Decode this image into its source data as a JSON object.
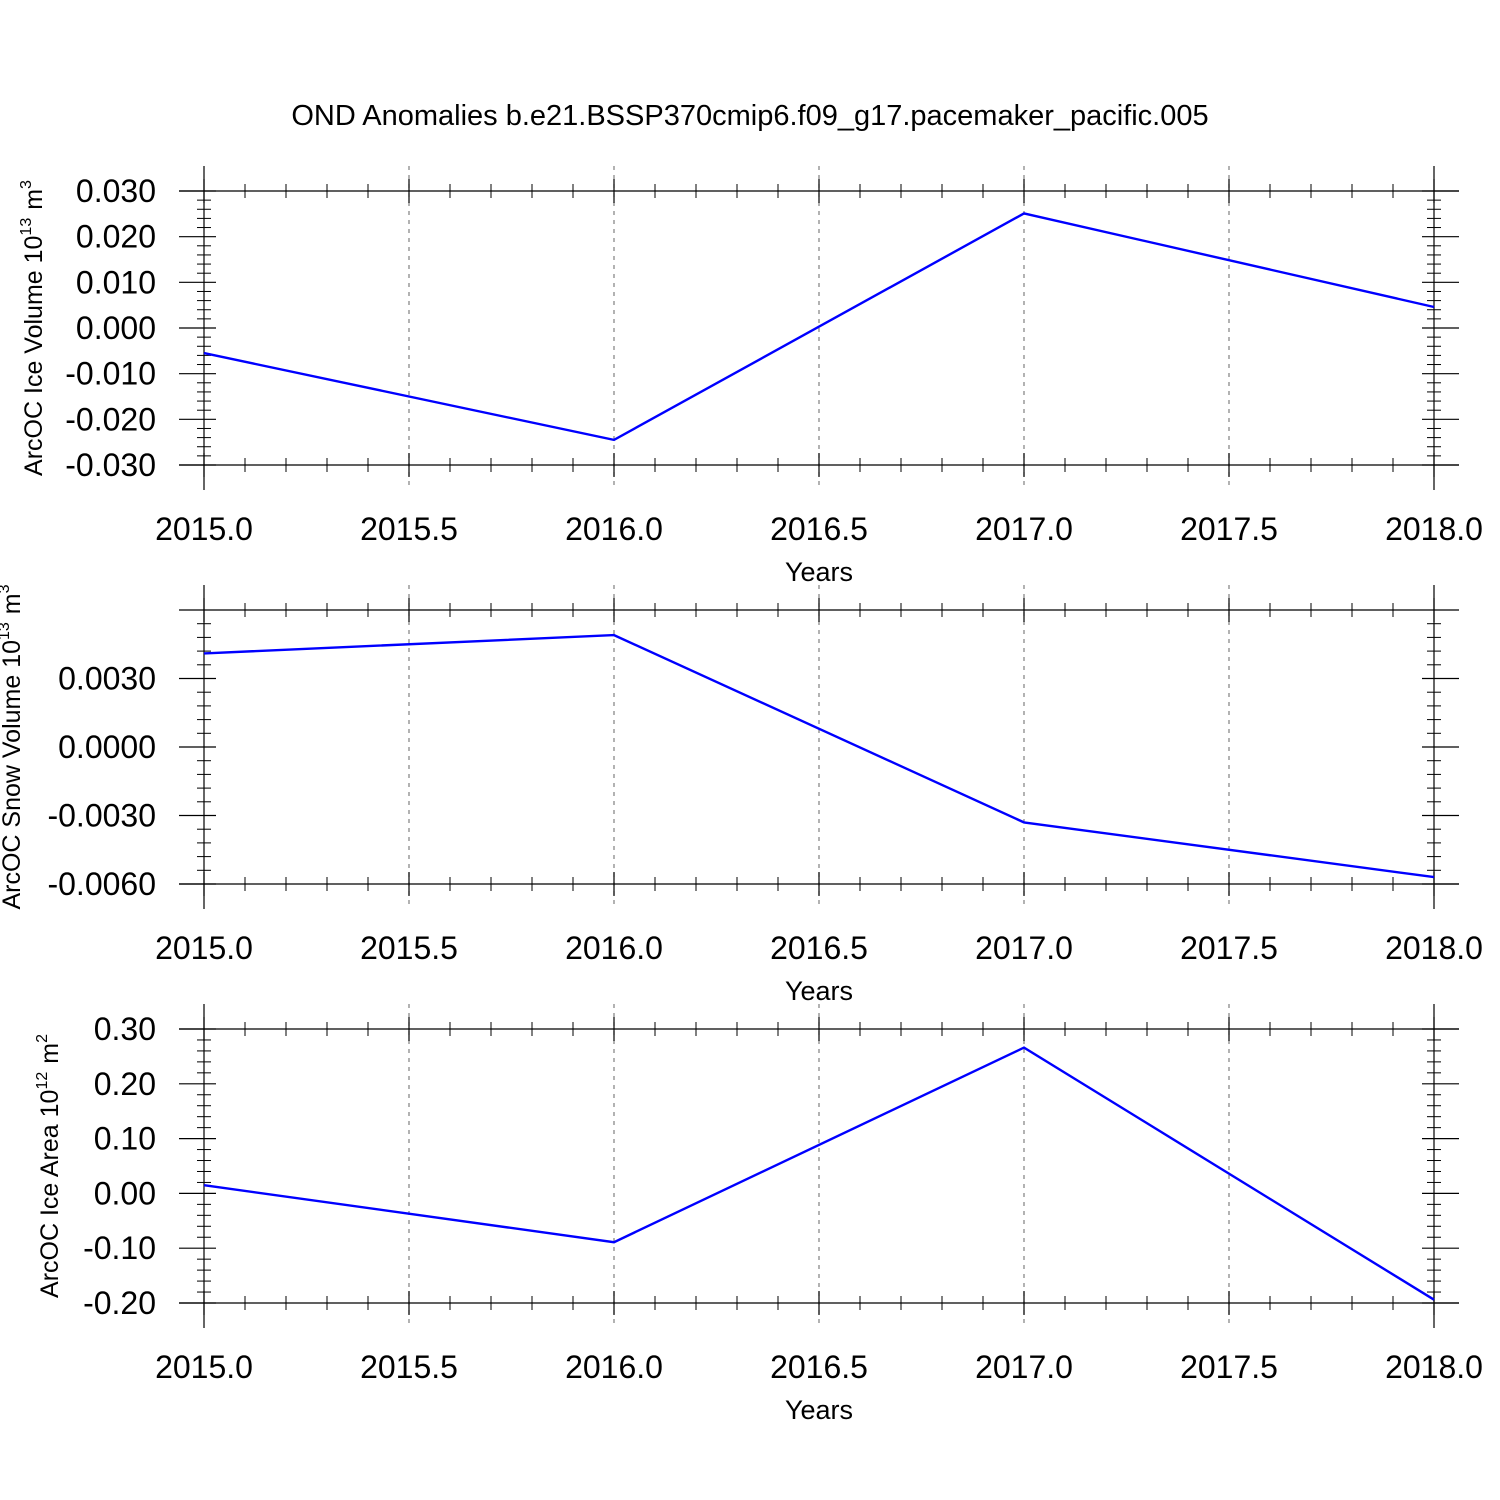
{
  "figure": {
    "title": "OND Anomalies b.e21.BSSP370cmip6.f09_g17.pacemaker_pacific.005"
  },
  "chart_data": [
    {
      "type": "line",
      "title": "",
      "xlabel": "Years",
      "ylabel": "ArcOC Ice Volume 10",
      "ylabel_exponent": "13",
      "ylabel_unit": "m",
      "ylabel_unit_exponent": "3",
      "x": [
        2015.0,
        2016.0,
        2017.0,
        2018.0
      ],
      "series": [
        {
          "values": [
            -0.0055,
            -0.0245,
            0.0251,
            0.0046
          ],
          "color": "#0000ff"
        }
      ],
      "xlim": [
        2015.0,
        2018.0
      ],
      "ylim": [
        -0.03,
        0.03
      ],
      "xticks": [
        2015.0,
        2015.5,
        2016.0,
        2016.5,
        2017.0,
        2017.5,
        2018.0
      ],
      "xtick_labels": [
        "2015.0",
        "2015.5",
        "2016.0",
        "2016.5",
        "2017.0",
        "2017.5",
        "2018.0"
      ],
      "yticks": [
        -0.03,
        -0.02,
        -0.01,
        0.0,
        0.01,
        0.02,
        0.03
      ],
      "ytick_labels": [
        "-0.030",
        "-0.020",
        "-0.010",
        "0.000",
        "0.010",
        "0.020",
        "0.030"
      ],
      "y_minor_step": 0.002,
      "x_minor_step": 0.1,
      "x_grid": true
    },
    {
      "type": "line",
      "title": "",
      "xlabel": "Years",
      "ylabel": "ArcOC Snow Volume 10",
      "ylabel_exponent": "13",
      "ylabel_unit": "m",
      "ylabel_unit_exponent": "3",
      "x": [
        2015.0,
        2016.0,
        2017.0,
        2018.0
      ],
      "series": [
        {
          "values": [
            0.0041,
            0.0049,
            -0.0033,
            -0.0057
          ],
          "color": "#0000ff"
        }
      ],
      "xlim": [
        2015.0,
        2018.0
      ],
      "ylim": [
        -0.006,
        0.006
      ],
      "xticks": [
        2015.0,
        2015.5,
        2016.0,
        2016.5,
        2017.0,
        2017.5,
        2018.0
      ],
      "xtick_labels": [
        "2015.0",
        "2015.5",
        "2016.0",
        "2016.5",
        "2017.0",
        "2017.5",
        "2018.0"
      ],
      "yticks": [
        -0.006,
        -0.003,
        0.0,
        0.003
      ],
      "ytick_labels": [
        "-0.0060",
        "-0.0030",
        "0.0000",
        "0.0030"
      ],
      "y_minor_step": 0.0006,
      "x_minor_step": 0.1,
      "x_grid": true
    },
    {
      "type": "line",
      "title": "",
      "xlabel": "Years",
      "ylabel": "ArcOC Ice Area 10",
      "ylabel_exponent": "12",
      "ylabel_unit": "m",
      "ylabel_unit_exponent": "2",
      "x": [
        2015.0,
        2016.0,
        2017.0,
        2018.0
      ],
      "series": [
        {
          "values": [
            0.015,
            -0.089,
            0.266,
            -0.194
          ],
          "color": "#0000ff"
        }
      ],
      "xlim": [
        2015.0,
        2018.0
      ],
      "ylim": [
        -0.2,
        0.3
      ],
      "xticks": [
        2015.0,
        2015.5,
        2016.0,
        2016.5,
        2017.0,
        2017.5,
        2018.0
      ],
      "xtick_labels": [
        "2015.0",
        "2015.5",
        "2016.0",
        "2016.5",
        "2017.0",
        "2017.5",
        "2018.0"
      ],
      "yticks": [
        -0.2,
        -0.1,
        0.0,
        0.1,
        0.2,
        0.3
      ],
      "ytick_labels": [
        "-0.20",
        "-0.10",
        "0.00",
        "0.10",
        "0.20",
        "0.30"
      ],
      "y_minor_step": 0.02,
      "x_minor_step": 0.1,
      "x_grid": true
    }
  ]
}
